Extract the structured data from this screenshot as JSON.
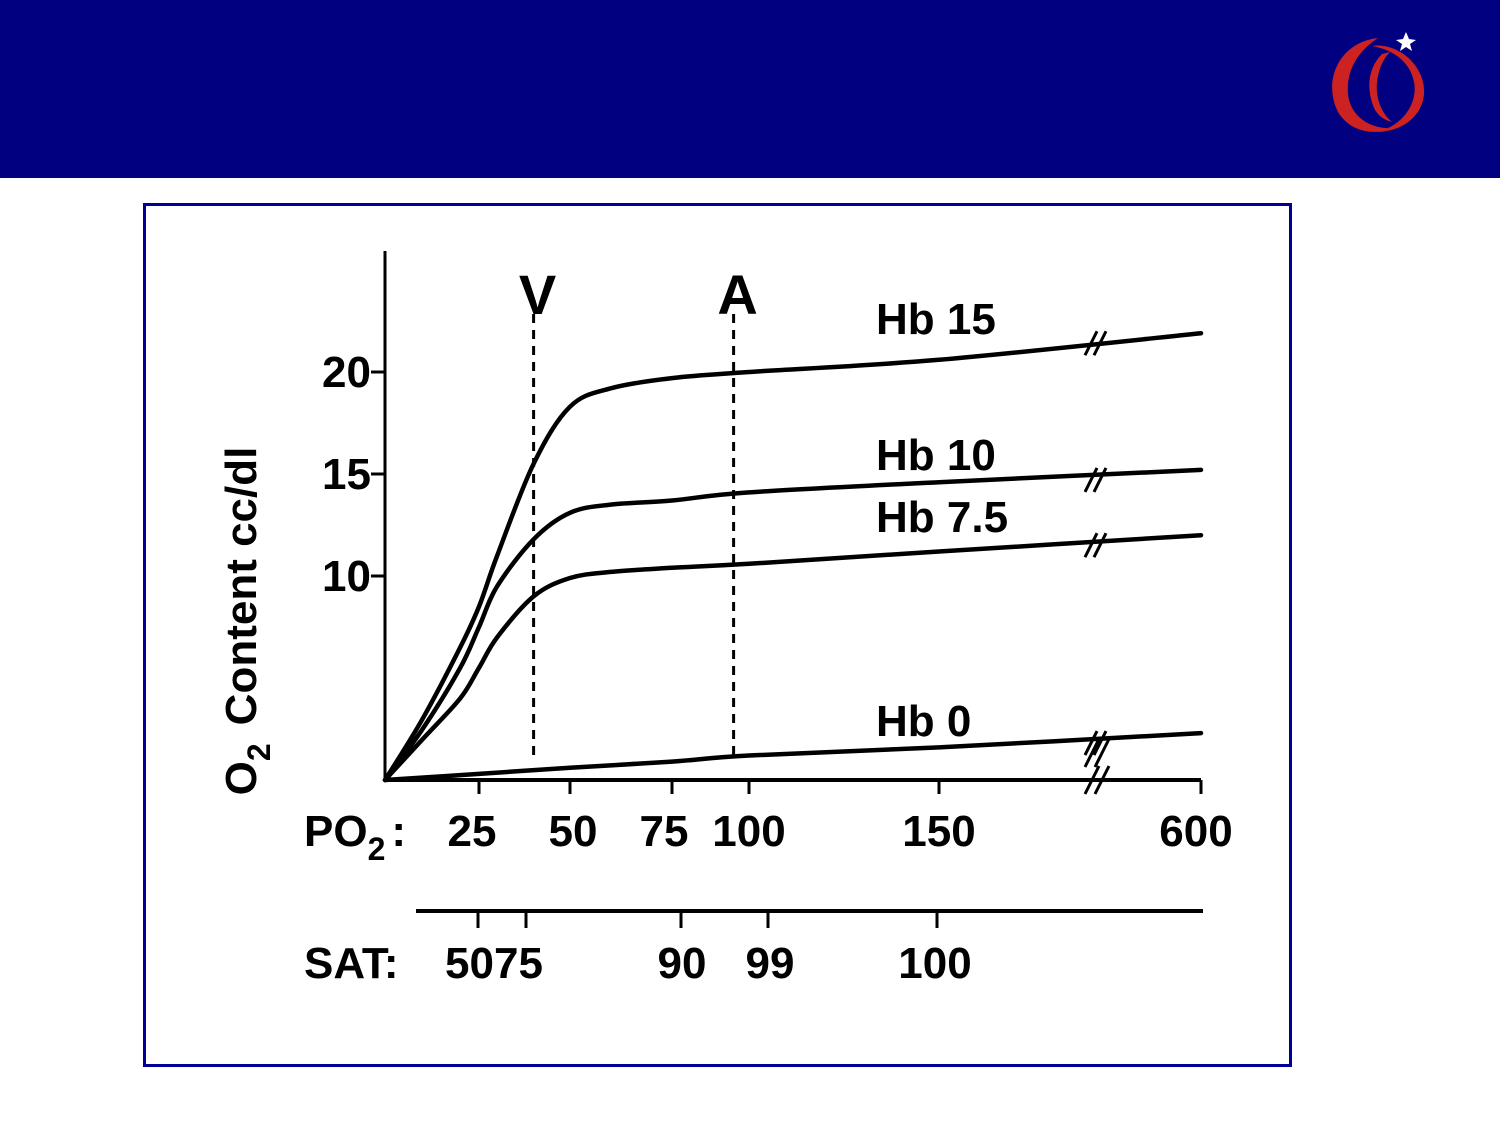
{
  "colors": {
    "header": "#000080",
    "frame_border": "#000099",
    "logo": "#cc2222",
    "ink": "#000000"
  },
  "header": {
    "logo_icon": "red-swirl-logo-icon"
  },
  "chart_data": {
    "type": "line",
    "ylabel_main": "O",
    "ylabel_sub": "2",
    "ylabel_rest": "Content cc/dl",
    "y_ticks": [
      10,
      15,
      20
    ],
    "ylim": [
      0,
      26
    ],
    "x_label_main": "PO",
    "x_label_sub": "2",
    "x_label_colon": ":",
    "x_tick_labels": [
      "25",
      "50",
      "75",
      "100",
      "150",
      "600"
    ],
    "sat_label": "SAT:",
    "sat_tick_labels": [
      "5075",
      "90",
      "99",
      "100"
    ],
    "markers": [
      {
        "label": "V",
        "po2": 40
      },
      {
        "label": "A",
        "po2": 95
      }
    ],
    "series": [
      {
        "name": "Hb 15",
        "po2": [
          0,
          10,
          20,
          25,
          30,
          40,
          50,
          60,
          75,
          100,
          150,
          600
        ],
        "o2": [
          0,
          3,
          6.5,
          8.5,
          11,
          15.5,
          18.3,
          19.2,
          19.7,
          20,
          20.6,
          21.9
        ]
      },
      {
        "name": "Hb 10",
        "po2": [
          0,
          10,
          20,
          25,
          30,
          40,
          50,
          60,
          75,
          100,
          150,
          600
        ],
        "o2": [
          0,
          2.5,
          5.5,
          7.5,
          9.5,
          11.8,
          13.1,
          13.5,
          13.7,
          14.1,
          14.6,
          15.2
        ]
      },
      {
        "name": "Hb 7.5",
        "po2": [
          0,
          10,
          20,
          25,
          30,
          40,
          50,
          60,
          75,
          100,
          150,
          600
        ],
        "o2": [
          0,
          2,
          4,
          5.5,
          7,
          9,
          9.9,
          10.2,
          10.4,
          10.6,
          11.2,
          12
        ]
      },
      {
        "name": "Hb 0",
        "po2": [
          0,
          25,
          50,
          75,
          100,
          150,
          600
        ],
        "o2": [
          0,
          0.3,
          0.6,
          0.9,
          1.2,
          1.6,
          2.3
        ]
      }
    ]
  }
}
